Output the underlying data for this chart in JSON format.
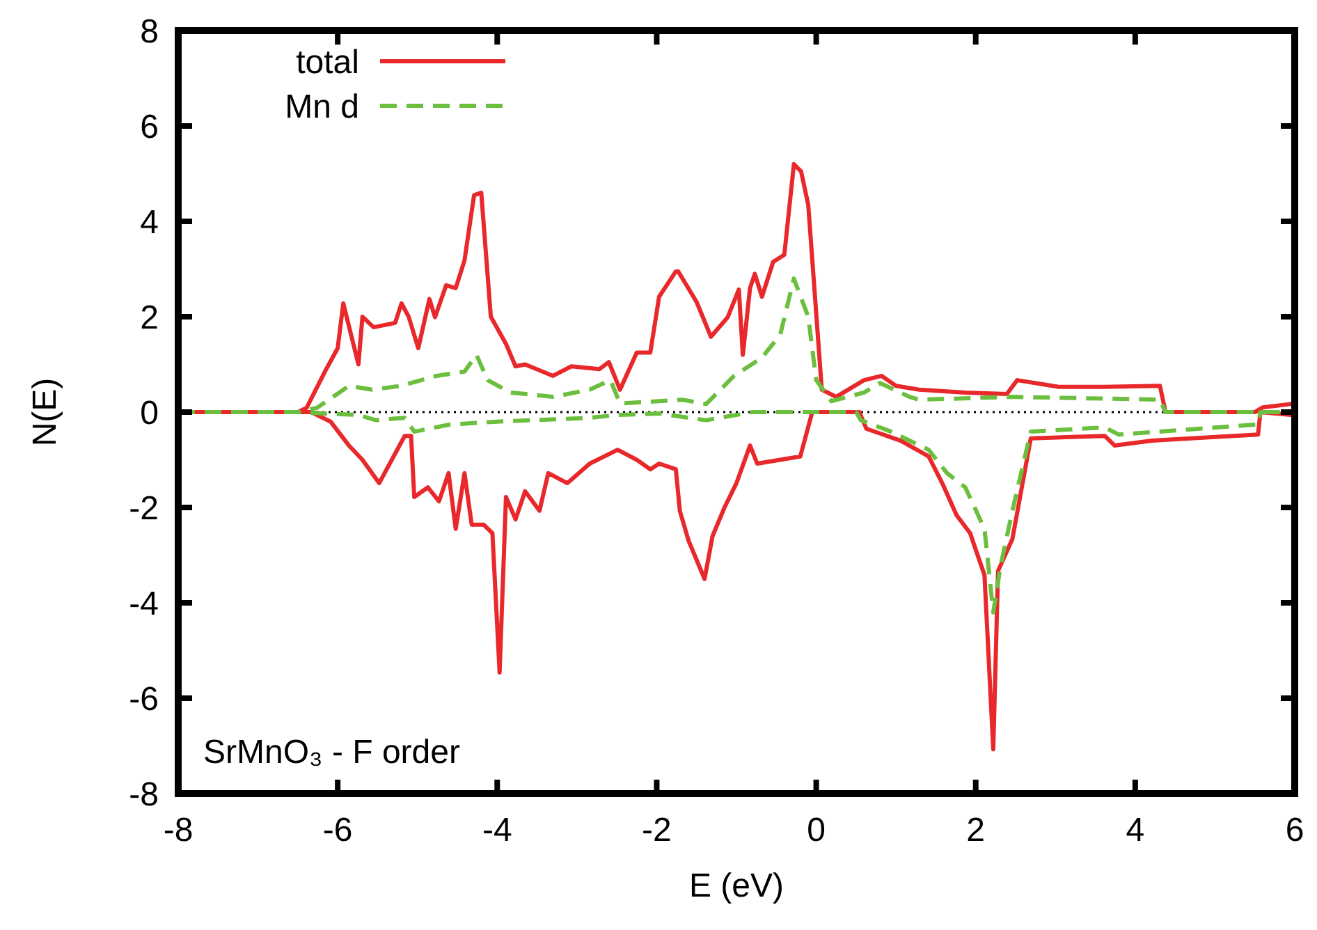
{
  "chart_data": {
    "type": "line",
    "xlabel": "E (eV)",
    "ylabel": "N(E)",
    "xlim": [
      -8,
      6
    ],
    "ylim": [
      -8,
      8
    ],
    "xticks": [
      -8,
      -6,
      -4,
      -2,
      0,
      2,
      4,
      6
    ],
    "yticks": [
      -8,
      -6,
      -4,
      -2,
      0,
      2,
      4,
      6,
      8
    ],
    "grid": false,
    "legend": "top left",
    "annotations": [
      "SrMnO₃ - F order"
    ],
    "ref_lines": [
      {
        "axis": "y",
        "value": 0,
        "color": "#000000",
        "line_style": "dotted"
      }
    ],
    "series": [
      {
        "name": "total",
        "color": "#e8282b",
        "line_style": "solid",
        "x": [
          -8,
          -6.5,
          -6.39,
          -6.16,
          -6.0,
          -5.93,
          -5.74,
          -5.69,
          -5.55,
          -5.28,
          -5.2,
          -5.11,
          -4.99,
          -4.85,
          -4.78,
          -4.64,
          -4.52,
          -4.41,
          -4.29,
          -4.2,
          -4.08,
          -3.89,
          -3.77,
          -3.65,
          -3.3,
          -3.07,
          -2.72,
          -2.6,
          -2.46,
          -2.25,
          -2.08,
          -1.97,
          -1.76,
          -1.73,
          -1.5,
          -1.32,
          -1.11,
          -0.97,
          -0.92,
          -0.83,
          -0.77,
          -0.68,
          -0.54,
          -0.4,
          -0.28,
          -0.19,
          -0.1,
          0.07,
          0.25,
          0.6,
          0.82,
          1.0,
          1.29,
          1.87,
          2.39,
          2.52,
          3.04,
          3.62,
          4.31,
          4.38,
          5.5,
          5.6,
          5.95,
          6
        ],
        "values": [
          0,
          0,
          0.09,
          0.85,
          1.34,
          2.28,
          1.0,
          2.0,
          1.78,
          1.87,
          2.28,
          2.0,
          1.34,
          2.37,
          1.99,
          2.66,
          2.6,
          3.18,
          4.55,
          4.6,
          2.0,
          1.43,
          0.96,
          1.0,
          0.76,
          0.96,
          0.9,
          1.05,
          0.47,
          1.25,
          1.25,
          2.42,
          2.95,
          2.95,
          2.31,
          1.58,
          1.99,
          2.57,
          1.2,
          2.6,
          2.9,
          2.42,
          3.15,
          3.3,
          5.2,
          5.05,
          4.35,
          0.47,
          0.32,
          0.67,
          0.76,
          0.55,
          0.47,
          0.41,
          0.38,
          0.67,
          0.53,
          0.53,
          0.55,
          0,
          0,
          0.1,
          0.17,
          0.17
        ]
      },
      {
        "color": "#e8282b",
        "line_style": "solid",
        "x": [
          -8,
          -6.5,
          -6.33,
          -6.09,
          -5.86,
          -5.69,
          -5.48,
          -5.16,
          -5.08,
          -5.04,
          -4.87,
          -4.73,
          -4.61,
          -4.52,
          -4.41,
          -4.32,
          -4.17,
          -4.06,
          -3.97,
          -3.89,
          -3.77,
          -3.65,
          -3.47,
          -3.36,
          -3.12,
          -2.84,
          -2.49,
          -2.25,
          -2.08,
          -1.97,
          -1.76,
          -1.71,
          -1.6,
          -1.4,
          -1.3,
          -1.15,
          -1.0,
          -0.83,
          -0.74,
          -0.2,
          -0.05,
          0.54,
          0.63,
          1.06,
          1.41,
          1.58,
          1.76,
          1.93,
          2.11,
          2.22,
          2.28,
          2.46,
          2.69,
          3.62,
          3.74,
          4.21,
          5.54,
          5.57,
          5.95,
          6
        ],
        "values": [
          0,
          0,
          0,
          -0.2,
          -0.7,
          -1.0,
          -1.49,
          -0.5,
          -0.5,
          -1.78,
          -1.58,
          -1.87,
          -1.28,
          -2.45,
          -1.28,
          -2.36,
          -2.36,
          -2.54,
          -5.46,
          -1.78,
          -2.25,
          -1.66,
          -2.07,
          -1.28,
          -1.49,
          -1.08,
          -0.79,
          -1.0,
          -1.2,
          -1.08,
          -1.2,
          -2.07,
          -2.7,
          -3.5,
          -2.6,
          -2.0,
          -1.49,
          -0.7,
          -1.08,
          -0.93,
          0,
          0,
          -0.35,
          -0.6,
          -0.93,
          -1.49,
          -2.16,
          -2.54,
          -3.42,
          -7.07,
          -3.33,
          -2.66,
          -0.55,
          -0.5,
          -0.7,
          -0.6,
          -0.47,
          0,
          -0.06,
          -0.06
        ]
      },
      {
        "name": "Mn d",
        "color": "#6cbf3e",
        "line_style": "dashed",
        "x": [
          -8,
          -6.5,
          -6.26,
          -5.98,
          -5.86,
          -5.57,
          -5.21,
          -4.76,
          -4.41,
          -4.26,
          -4.12,
          -3.83,
          -3.3,
          -2.84,
          -2.58,
          -2.46,
          -1.97,
          -1.68,
          -1.38,
          -1.03,
          -0.68,
          -0.45,
          -0.28,
          -0.1,
          0.0,
          0.19,
          0.6,
          0.8,
          1.17,
          1.29,
          2.46,
          4.31,
          4.38,
          6
        ],
        "values": [
          0,
          0,
          0.09,
          0.41,
          0.55,
          0.47,
          0.55,
          0.76,
          0.85,
          1.2,
          0.67,
          0.41,
          0.32,
          0.47,
          0.67,
          0.18,
          0.23,
          0.26,
          0.17,
          0.76,
          1.14,
          1.63,
          2.8,
          2.0,
          0.67,
          0.23,
          0.41,
          0.61,
          0.32,
          0.26,
          0.32,
          0.26,
          0,
          0
        ]
      },
      {
        "color": "#6cbf3e",
        "line_style": "dashed",
        "x": [
          -8,
          -6.5,
          -6.16,
          -5.74,
          -5.52,
          -5.16,
          -5.04,
          -4.59,
          -4.0,
          -2.84,
          -2.49,
          -1.97,
          -1.38,
          -0.8,
          0.5,
          0.56,
          0.94,
          1.41,
          1.64,
          1.87,
          2.11,
          2.22,
          2.31,
          2.46,
          2.69,
          3.62,
          3.79,
          5.54,
          5.57,
          6
        ],
        "values": [
          0,
          0,
          -0.03,
          -0.06,
          -0.17,
          -0.12,
          -0.41,
          -0.26,
          -0.2,
          -0.12,
          -0.06,
          -0.03,
          -0.17,
          0,
          0,
          -0.17,
          -0.41,
          -0.79,
          -1.28,
          -1.58,
          -2.45,
          -4.2,
          -3.24,
          -2.07,
          -0.41,
          -0.32,
          -0.47,
          -0.26,
          0,
          0
        ]
      }
    ]
  }
}
